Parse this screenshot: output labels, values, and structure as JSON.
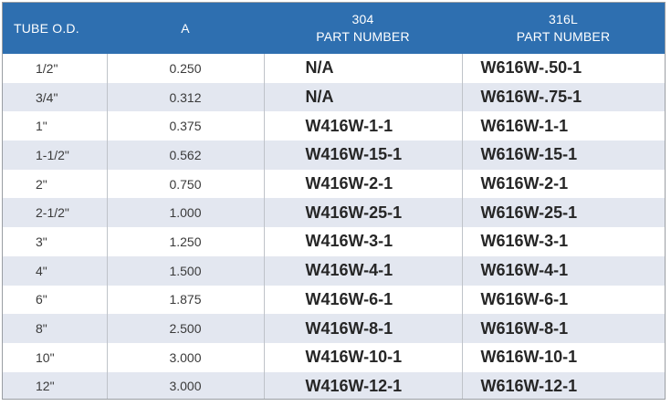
{
  "header": {
    "col_od": "TUBE O.D.",
    "col_a": "A",
    "col_304_line1": "304",
    "col_304_line2": "PART NUMBER",
    "col_316_line1": "316L",
    "col_316_line2": "PART NUMBER"
  },
  "colors": {
    "header_bg": "#2e6fb0",
    "stripe_bg": "#e3e7f0"
  },
  "rows": [
    {
      "od": "1/2\"",
      "a": "0.250",
      "p304": "N/A",
      "p316": "W616W-.50-1"
    },
    {
      "od": "3/4\"",
      "a": "0.312",
      "p304": "N/A",
      "p316": "W616W-.75-1"
    },
    {
      "od": "1\"",
      "a": "0.375",
      "p304": "W416W-1-1",
      "p316": "W616W-1-1"
    },
    {
      "od": "1-1/2\"",
      "a": "0.562",
      "p304": "W416W-15-1",
      "p316": "W616W-15-1"
    },
    {
      "od": "2\"",
      "a": "0.750",
      "p304": "W416W-2-1",
      "p316": "W616W-2-1"
    },
    {
      "od": "2-1/2\"",
      "a": "1.000",
      "p304": "W416W-25-1",
      "p316": "W616W-25-1"
    },
    {
      "od": "3\"",
      "a": "1.250",
      "p304": "W416W-3-1",
      "p316": "W616W-3-1"
    },
    {
      "od": "4\"",
      "a": "1.500",
      "p304": "W416W-4-1",
      "p316": "W616W-4-1"
    },
    {
      "od": "6\"",
      "a": "1.875",
      "p304": "W416W-6-1",
      "p316": "W616W-6-1"
    },
    {
      "od": "8\"",
      "a": "2.500",
      "p304": "W416W-8-1",
      "p316": "W616W-8-1"
    },
    {
      "od": "10\"",
      "a": "3.000",
      "p304": "W416W-10-1",
      "p316": "W616W-10-1"
    },
    {
      "od": "12\"",
      "a": "3.000",
      "p304": "W416W-12-1",
      "p316": "W616W-12-1"
    }
  ]
}
